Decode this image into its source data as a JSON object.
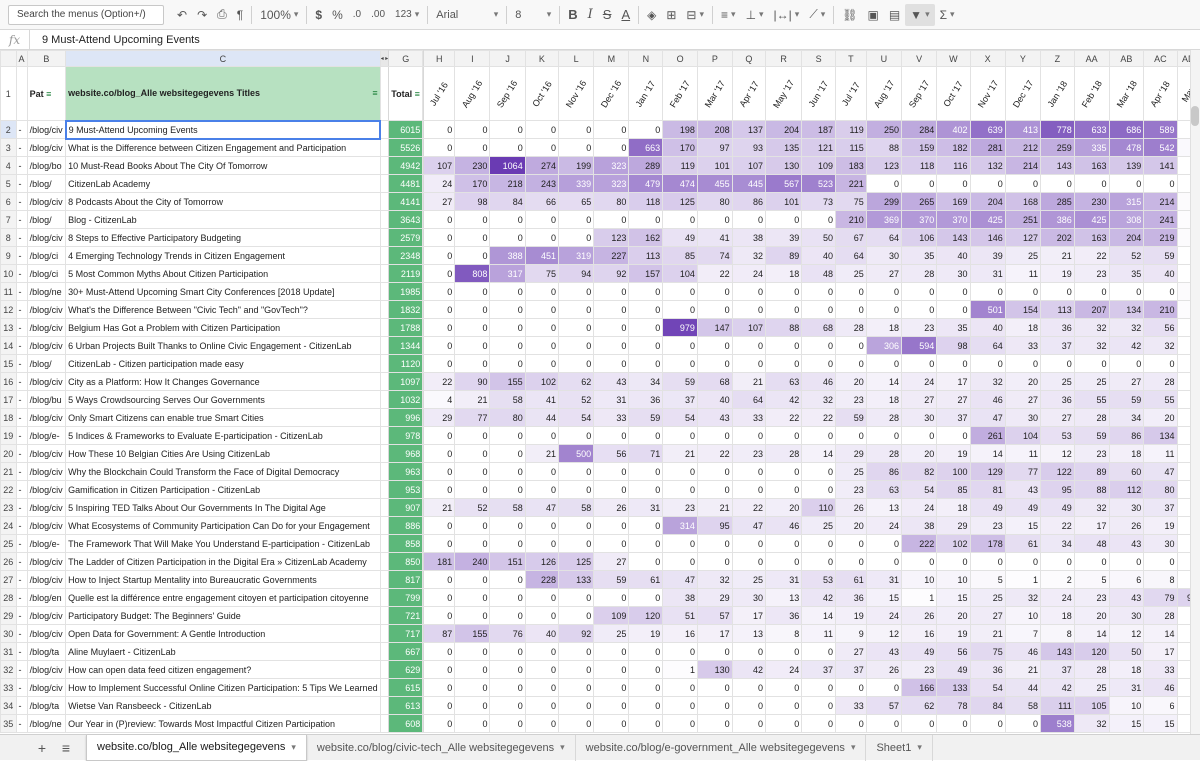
{
  "toolbar": {
    "search": "Search the menus (Option+/)",
    "zoom": "100%",
    "currency": "$",
    "percent": "%",
    "dec_dec": ".0",
    "dec_inc": ".00",
    "more_formats": "123",
    "font": "Arial",
    "font_size": "8",
    "bold": "B",
    "italic": "I",
    "strike": "S",
    "textcolor": "A",
    "functions": "Σ",
    "undo_icon": "undo-icon",
    "redo_icon": "redo-icon",
    "print_icon": "print-icon",
    "paint_format_icon": "paint-format-icon",
    "fill_color_icon": "fill-color-icon",
    "borders_icon": "borders-icon",
    "merge_icon": "merge-icon",
    "halign_icon": "align-left-icon",
    "valign_icon": "valign-bottom-icon",
    "wrap_icon": "wrap-icon",
    "rotate_icon": "text-rotation-icon",
    "link_icon": "link-icon",
    "comment_icon": "comment-icon",
    "chart_icon": "chart-icon",
    "filter_icon": "filter-icon"
  },
  "formula": {
    "fx": "fx",
    "value": "9 Must-Attend Upcoming Events"
  },
  "colors": {
    "total_green": "#5cb87a",
    "heat_max": "#6a3bb3",
    "selection_blue": "#4a80e8",
    "header_green": "#b7e1c1"
  },
  "columns": {
    "letters_left": [
      "A",
      "B",
      "C",
      "G"
    ],
    "letters_months": [
      "H",
      "I",
      "J",
      "K",
      "L",
      "M",
      "N",
      "O",
      "P",
      "Q",
      "R",
      "S",
      "T",
      "U",
      "V",
      "W",
      "X",
      "Y",
      "Z",
      "AA",
      "AB",
      "AC",
      "AD"
    ]
  },
  "header": {
    "a": "",
    "b": "Pat",
    "c": "website.co/blog_Alle websitegegevens Titles",
    "total": "Total",
    "months": [
      "Jul '16",
      "Aug '16",
      "Sep '16",
      "Oct '16",
      "Nov '16",
      "Dec '16",
      "Jan '17",
      "Feb '17",
      "Mar '17",
      "Apr '17",
      "May '17",
      "Jun '17",
      "Jul '17",
      "Aug '17",
      "Sep '17",
      "Oct '17",
      "Nov '17",
      "Dec '17",
      "Jan '18",
      "Feb '18",
      "Mar '18",
      "Apr '18",
      "May"
    ]
  },
  "rows": [
    {
      "n": "2",
      "a": "-",
      "b": "/blog/civ",
      "c": "9 Must-Attend Upcoming Events",
      "total": "6015",
      "v": [
        0,
        0,
        0,
        0,
        0,
        0,
        0,
        198,
        208,
        137,
        204,
        187,
        119,
        250,
        284,
        402,
        639,
        413,
        778,
        633,
        686,
        589,
        null
      ]
    },
    {
      "n": "3",
      "a": "-",
      "b": "/blog/civ",
      "c": "What is the Difference between Citizen Engagement and Participation",
      "total": "5526",
      "v": [
        0,
        0,
        0,
        0,
        0,
        0,
        663,
        170,
        97,
        93,
        135,
        121,
        115,
        88,
        159,
        182,
        281,
        212,
        259,
        335,
        478,
        542,
        4
      ]
    },
    {
      "n": "4",
      "a": "-",
      "b": "/blog/bo",
      "c": "10 Must-Read Books About The City Of Tomorrow",
      "total": "4942",
      "v": [
        107,
        230,
        1064,
        274,
        199,
        323,
        289,
        119,
        101,
        107,
        130,
        109,
        183,
        123,
        118,
        116,
        132,
        214,
        143,
        163,
        139,
        141,
        null
      ]
    },
    {
      "n": "5",
      "a": "-",
      "b": "/blog/",
      "c": "CitizenLab Academy",
      "total": "4481",
      "v": [
        24,
        170,
        218,
        243,
        339,
        323,
        479,
        474,
        455,
        445,
        567,
        523,
        221,
        0,
        0,
        0,
        0,
        0,
        0,
        0,
        0,
        0,
        null
      ]
    },
    {
      "n": "6",
      "a": "-",
      "b": "/blog/civ",
      "c": "8 Podcasts About the City of Tomorrow",
      "total": "4141",
      "v": [
        27,
        98,
        84,
        66,
        65,
        80,
        118,
        125,
        80,
        86,
        101,
        73,
        75,
        299,
        265,
        169,
        204,
        168,
        285,
        230,
        315,
        214,
        2
      ]
    },
    {
      "n": "7",
      "a": "-",
      "b": "/blog/",
      "c": "Blog - CitizenLab",
      "total": "3643",
      "v": [
        0,
        0,
        0,
        0,
        0,
        0,
        0,
        0,
        0,
        0,
        0,
        0,
        210,
        369,
        370,
        370,
        425,
        251,
        386,
        425,
        308,
        241,
        1
      ]
    },
    {
      "n": "8",
      "a": "-",
      "b": "/blog/civ",
      "c": "8 Steps to Effective Participatory Budgeting",
      "total": "2579",
      "v": [
        0,
        0,
        0,
        0,
        0,
        123,
        162,
        49,
        41,
        38,
        39,
        50,
        67,
        64,
        106,
        143,
        146,
        127,
        202,
        163,
        204,
        219,
        2
      ]
    },
    {
      "n": "9",
      "a": "-",
      "b": "/blog/ci",
      "c": "4 Emerging Technology Trends in Citizen Engagement",
      "total": "2348",
      "v": [
        0,
        0,
        388,
        451,
        319,
        227,
        113,
        85,
        74,
        32,
        89,
        40,
        64,
        30,
        35,
        40,
        39,
        25,
        21,
        22,
        52,
        59,
        null
      ]
    },
    {
      "n": "10",
      "a": "-",
      "b": "/blog/ci",
      "c": "5 Most Common Myths About Citizen Participation",
      "total": "2119",
      "v": [
        0,
        808,
        317,
        75,
        94,
        92,
        157,
        104,
        22,
        24,
        18,
        48,
        25,
        27,
        28,
        30,
        31,
        11,
        19,
        23,
        35,
        40,
        null
      ]
    },
    {
      "n": "11",
      "a": "-",
      "b": "/blog/ne",
      "c": "30+ Must-Attend Upcoming Smart City Conferences [2018 Update]",
      "total": "1985",
      "v": [
        0,
        0,
        0,
        0,
        0,
        0,
        0,
        0,
        0,
        0,
        0,
        0,
        0,
        0,
        0,
        0,
        0,
        0,
        0,
        0,
        0,
        0,
        2
      ]
    },
    {
      "n": "12",
      "a": "-",
      "b": "/blog/civ",
      "c": "What's the Difference Between \"Civic Tech\" and \"GovTech\"?",
      "total": "1832",
      "v": [
        0,
        0,
        0,
        0,
        0,
        0,
        0,
        0,
        0,
        0,
        0,
        0,
        0,
        0,
        0,
        0,
        501,
        154,
        113,
        207,
        134,
        210,
        1
      ]
    },
    {
      "n": "13",
      "a": "-",
      "b": "/blog/civ",
      "c": "Belgium Has Got a Problem with Citizen Participation",
      "total": "1788",
      "v": [
        0,
        0,
        0,
        0,
        0,
        0,
        0,
        979,
        147,
        107,
        88,
        68,
        28,
        18,
        23,
        35,
        40,
        18,
        36,
        32,
        32,
        56,
        null
      ]
    },
    {
      "n": "14",
      "a": "-",
      "b": "/blog/civ",
      "c": "6 Urban Projects Built Thanks to Online Civic Engagement - CitizenLab",
      "total": "1344",
      "v": [
        0,
        0,
        0,
        0,
        0,
        0,
        0,
        0,
        0,
        0,
        0,
        0,
        0,
        306,
        594,
        98,
        64,
        33,
        37,
        32,
        42,
        32,
        null
      ]
    },
    {
      "n": "15",
      "a": "-",
      "b": "/blog/",
      "c": "CitizenLab - Citizen participation made easy",
      "total": "1120",
      "v": [
        0,
        0,
        0,
        0,
        0,
        0,
        0,
        0,
        0,
        0,
        0,
        0,
        0,
        0,
        0,
        0,
        0,
        0,
        0,
        0,
        0,
        0,
        null
      ]
    },
    {
      "n": "16",
      "a": "-",
      "b": "/blog/civ",
      "c": "City as a Platform: How It Changes Governance",
      "total": "1097",
      "v": [
        22,
        90,
        155,
        102,
        62,
        43,
        34,
        59,
        68,
        21,
        63,
        46,
        20,
        14,
        24,
        17,
        32,
        20,
        25,
        25,
        27,
        28,
        null
      ]
    },
    {
      "n": "17",
      "a": "-",
      "b": "/blog/bu",
      "c": "5 Ways Crowdsourcing Serves Our Governments",
      "total": "1032",
      "v": [
        4,
        21,
        58,
        41,
        52,
        31,
        36,
        37,
        40,
        64,
        42,
        32,
        23,
        18,
        27,
        27,
        46,
        27,
        36,
        55,
        59,
        55,
        null
      ]
    },
    {
      "n": "18",
      "a": "-",
      "b": "/blog/civ",
      "c": "Only Smart Citizens can enable true Smart Cities",
      "total": "996",
      "v": [
        29,
        77,
        80,
        44,
        54,
        33,
        59,
        54,
        43,
        33,
        22,
        22,
        59,
        28,
        30,
        37,
        47,
        30,
        27,
        28,
        34,
        20,
        null
      ]
    },
    {
      "n": "19",
      "a": "-",
      "b": "/blog/e-",
      "c": "5 Indices & Frameworks to Evaluate E-participation - CitizenLab",
      "total": "978",
      "v": [
        0,
        0,
        0,
        0,
        0,
        0,
        0,
        0,
        0,
        0,
        0,
        0,
        0,
        0,
        0,
        0,
        261,
        104,
        53,
        59,
        86,
        134,
        null
      ]
    },
    {
      "n": "20",
      "a": "-",
      "b": "/blog/civ",
      "c": "How These 10 Belgian Cities Are Using CitizenLab",
      "total": "968",
      "v": [
        0,
        0,
        0,
        21,
        500,
        56,
        71,
        21,
        22,
        23,
        28,
        14,
        29,
        28,
        20,
        19,
        14,
        11,
        12,
        23,
        18,
        11,
        null
      ]
    },
    {
      "n": "21",
      "a": "-",
      "b": "/blog/civ",
      "c": "Why the Blockchain Could Transform the Face of Digital Democracy",
      "total": "963",
      "v": [
        0,
        0,
        0,
        0,
        0,
        0,
        0,
        0,
        0,
        0,
        0,
        0,
        25,
        86,
        82,
        100,
        129,
        77,
        122,
        89,
        60,
        47,
        null
      ]
    },
    {
      "n": "22",
      "a": "-",
      "b": "/blog/civ",
      "c": "Gamification in Citizen Participation - CitizenLab",
      "total": "953",
      "v": [
        0,
        0,
        0,
        0,
        0,
        0,
        0,
        0,
        0,
        0,
        0,
        0,
        23,
        63,
        54,
        85,
        81,
        43,
        95,
        88,
        112,
        80,
        null
      ]
    },
    {
      "n": "23",
      "a": "-",
      "b": "/blog/civ",
      "c": "5 Inspiring TED Talks About Our Governments In The Digital Age",
      "total": "907",
      "v": [
        21,
        52,
        58,
        47,
        58,
        26,
        31,
        23,
        21,
        22,
        20,
        110,
        26,
        13,
        24,
        18,
        49,
        49,
        49,
        32,
        30,
        37,
        null
      ]
    },
    {
      "n": "24",
      "a": "-",
      "b": "/blog/civ",
      "c": "What Ecosystems of Community Participation Can Do for your Engagement",
      "total": "886",
      "v": [
        0,
        0,
        0,
        0,
        0,
        0,
        0,
        314,
        95,
        47,
        46,
        25,
        20,
        24,
        38,
        29,
        23,
        15,
        22,
        17,
        26,
        19,
        null
      ]
    },
    {
      "n": "25",
      "a": "-",
      "b": "/blog/e-",
      "c": "The Framework That Will Make You Understand E-participation - CitizenLab",
      "total": "858",
      "v": [
        0,
        0,
        0,
        0,
        0,
        0,
        0,
        0,
        0,
        0,
        0,
        0,
        0,
        0,
        222,
        102,
        178,
        61,
        34,
        48,
        43,
        30,
        null
      ]
    },
    {
      "n": "26",
      "a": "-",
      "b": "/blog/civ",
      "c": "The Ladder of Citizen Participation in the Digital Era » CitizenLab Academy",
      "total": "850",
      "v": [
        181,
        240,
        151,
        126,
        125,
        27,
        0,
        0,
        0,
        0,
        0,
        0,
        0,
        0,
        0,
        0,
        0,
        0,
        0,
        0,
        0,
        0,
        null
      ]
    },
    {
      "n": "27",
      "a": "-",
      "b": "/blog/civ",
      "c": "How to Inject Startup Mentality into Bureaucratic Governments",
      "total": "817",
      "v": [
        0,
        0,
        0,
        228,
        133,
        59,
        61,
        47,
        32,
        25,
        31,
        53,
        61,
        31,
        10,
        10,
        5,
        1,
        2,
        5,
        6,
        8,
        null
      ]
    },
    {
      "n": "28",
      "a": "-",
      "b": "/blog/en",
      "c": "Quelle est la différence entre engagement citoyen et participation citoyenne",
      "total": "799",
      "v": [
        0,
        0,
        0,
        0,
        0,
        0,
        0,
        38,
        29,
        30,
        13,
        42,
        36,
        15,
        1,
        15,
        25,
        32,
        24,
        23,
        43,
        79,
        96
      ]
    },
    {
      "n": "29",
      "a": "-",
      "b": "/blog/civ",
      "c": "Participatory Budget: The Beginners' Guide",
      "total": "721",
      "v": [
        0,
        0,
        0,
        0,
        0,
        109,
        120,
        51,
        57,
        17,
        36,
        14,
        19,
        24,
        26,
        20,
        27,
        10,
        18,
        20,
        30,
        28,
        null
      ]
    },
    {
      "n": "30",
      "a": "-",
      "b": "/blog/civ",
      "c": "Open Data for Government: A Gentle Introduction",
      "total": "717",
      "v": [
        87,
        155,
        76,
        40,
        92,
        25,
        19,
        16,
        17,
        13,
        8,
        11,
        9,
        12,
        16,
        19,
        21,
        7,
        8,
        14,
        12,
        14,
        null
      ]
    },
    {
      "n": "31",
      "a": "-",
      "b": "/blog/ta",
      "c": "Aline Muylaert - CitizenLab",
      "total": "667",
      "v": [
        0,
        0,
        0,
        0,
        0,
        0,
        0,
        0,
        0,
        0,
        0,
        0,
        27,
        43,
        49,
        56,
        75,
        46,
        143,
        120,
        50,
        17,
        null
      ]
    },
    {
      "n": "32",
      "a": "-",
      "b": "/blog/civ",
      "c": "How can open data feed citizen engagement?",
      "total": "629",
      "v": [
        0,
        0,
        0,
        0,
        0,
        0,
        0,
        1,
        130,
        42,
        24,
        37,
        37,
        26,
        23,
        49,
        36,
        21,
        37,
        28,
        18,
        33,
        null
      ]
    },
    {
      "n": "33",
      "a": "-",
      "b": "/blog/civ",
      "c": "How to Implement Successful Online Citizen Participation: 5 Tips We Learned",
      "total": "615",
      "v": [
        0,
        0,
        0,
        0,
        0,
        0,
        0,
        0,
        0,
        0,
        0,
        0,
        0,
        0,
        166,
        133,
        54,
        44,
        42,
        25,
        31,
        46,
        null
      ]
    },
    {
      "n": "34",
      "a": "-",
      "b": "/blog/ta",
      "c": "Wietse Van Ransbeeck - CitizenLab",
      "total": "613",
      "v": [
        0,
        0,
        0,
        0,
        0,
        0,
        0,
        0,
        0,
        0,
        0,
        0,
        33,
        57,
        62,
        78,
        84,
        58,
        111,
        105,
        10,
        6,
        null
      ]
    },
    {
      "n": "35",
      "a": "-",
      "b": "/blog/ne",
      "c": "Our Year in (P)review: Towards Most Impactful Citizen Participation",
      "total": "608",
      "v": [
        0,
        0,
        0,
        0,
        0,
        0,
        0,
        0,
        0,
        0,
        0,
        0,
        0,
        0,
        0,
        0,
        0,
        0,
        538,
        32,
        15,
        15,
        null
      ]
    }
  ],
  "tabs": {
    "add_icon": "+",
    "list_icon": "≡",
    "items": [
      {
        "label": "website.co/blog_Alle websitegegevens",
        "active": true
      },
      {
        "label": "website.co/blog/civic-tech_Alle websitegegevens",
        "active": false
      },
      {
        "label": "website.co/blog/e-government_Alle websitegegevens",
        "active": false
      },
      {
        "label": "Sheet1",
        "active": false
      }
    ]
  }
}
